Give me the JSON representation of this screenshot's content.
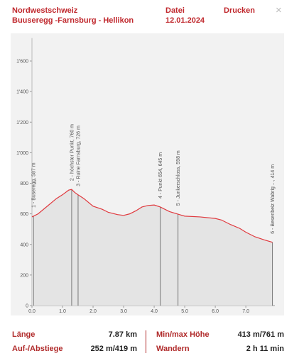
{
  "header": {
    "title": "Nordwestschweiz",
    "subtitle": "Buuseregg -Farnsburg - Hellikon",
    "menu": [
      "Datei",
      "Drucken"
    ],
    "date": "12.01.2024",
    "close": "×"
  },
  "chart_data": {
    "type": "area",
    "color": "#e0393e",
    "fill": "#e4e4e4",
    "x": [
      0,
      0.2,
      0.5,
      0.8,
      1.0,
      1.2,
      1.3,
      1.4,
      1.5,
      1.7,
      2.0,
      2.3,
      2.5,
      2.8,
      3.0,
      3.2,
      3.4,
      3.6,
      3.8,
      4.0,
      4.2,
      4.5,
      4.78,
      5.0,
      5.5,
      6.0,
      6.2,
      6.5,
      6.8,
      7.0,
      7.3,
      7.6,
      7.87
    ],
    "values": [
      580,
      600,
      650,
      700,
      725,
      755,
      760,
      740,
      726,
      700,
      650,
      630,
      610,
      595,
      590,
      600,
      620,
      645,
      655,
      658,
      645,
      615,
      598,
      585,
      580,
      570,
      560,
      530,
      505,
      480,
      450,
      430,
      414
    ],
    "xlim": [
      0,
      7.95
    ],
    "ylim": [
      0,
      1750
    ],
    "xticks": [
      {
        "value": 0,
        "label": "0.0"
      },
      {
        "value": 1,
        "label": "1.0"
      },
      {
        "value": 2,
        "label": "2.0"
      },
      {
        "value": 3,
        "label": "3.0"
      },
      {
        "value": 4,
        "label": "4.0"
      },
      {
        "value": 5,
        "label": "5.0"
      },
      {
        "value": 6,
        "label": "6.0"
      },
      {
        "value": 7,
        "label": "7.0"
      }
    ],
    "yticks": [
      0,
      200,
      400,
      600,
      800,
      {
        "value": 1000,
        "label": "1'000"
      },
      {
        "value": 1200,
        "label": "1'200"
      },
      {
        "value": 1400,
        "label": "1'400"
      },
      {
        "value": 1600,
        "label": "1'600"
      }
    ],
    "waypoints": [
      {
        "x": 0.05,
        "label": "1 - Buseregg, 587 m"
      },
      {
        "x": 1.3,
        "label": "2 - höchster Punkt, 760 m"
      },
      {
        "x": 1.51,
        "label": "3 - Ruine Farnsburg, 726 m"
      },
      {
        "x": 4.2,
        "label": "4 - Punkt 654, 645 m"
      },
      {
        "x": 4.78,
        "label": "5 - Junkerschloss, 598 m"
      },
      {
        "x": 7.87,
        "label": "6 - Besenbeiz Wabrig ..., 414 m"
      }
    ]
  },
  "stats": [
    {
      "label": "Länge",
      "value": "7.87 km"
    },
    {
      "label": "Min/max Höhe",
      "value": "413 m/761 m"
    },
    {
      "label": "Auf-/Abstiege",
      "value": "252 m/419 m"
    },
    {
      "label": "Wandern",
      "value": "2 h 11 min"
    }
  ]
}
